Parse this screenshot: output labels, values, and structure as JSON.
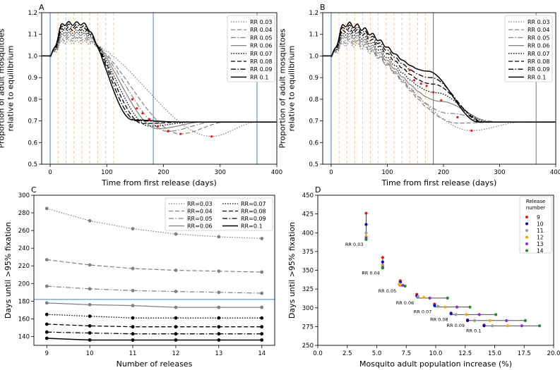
{
  "chart_data": [
    {
      "panel": "A",
      "type": "line",
      "xlabel": "Time from first release (days)",
      "ylabel": [
        "Proportion of adult mosquitoes",
        "relative to equilibrium"
      ],
      "xlim": [
        -15,
        400
      ],
      "ylim": [
        0.5,
        1.2
      ],
      "xticks": [
        0,
        100,
        200,
        300,
        400
      ],
      "yticks": [
        0.5,
        0.6,
        0.7,
        0.8,
        0.9,
        1.0,
        1.1,
        1.2
      ],
      "grid": false,
      "legend_position": "top-right",
      "release_days": [
        0,
        14,
        28,
        42,
        56,
        70,
        84,
        98,
        112
      ],
      "blue_lines_days": [
        0,
        182,
        365
      ],
      "peak_base": 1.145,
      "tail_value": 0.695,
      "series": [
        {
          "name": "RR 0.03",
          "min_day": 285,
          "min_value": 0.628,
          "style": "dotted"
        },
        {
          "name": "RR 0.04",
          "min_day": 230,
          "min_value": 0.64,
          "style": "dashed"
        },
        {
          "name": "RR 0.05",
          "min_day": 208,
          "min_value": 0.652,
          "style": "dashdot"
        },
        {
          "name": "RR 0.06",
          "min_day": 190,
          "min_value": 0.664,
          "style": "solid-gray"
        },
        {
          "name": "RR 0.07",
          "min_day": 175,
          "min_value": 0.676,
          "style": "dotted-black"
        },
        {
          "name": "RR 0.08",
          "min_day": 163,
          "min_value": 0.688,
          "style": "dashed-black"
        },
        {
          "name": "RR 0.09",
          "min_day": 153,
          "min_value": 0.7,
          "style": "dashdot-black"
        },
        {
          "name": "RR 0.1",
          "min_day": 145,
          "min_value": 0.705,
          "style": "solid-black"
        }
      ],
      "red_points": [
        [
          285,
          0.628
        ],
        [
          230,
          0.64
        ],
        [
          208,
          0.652
        ],
        [
          190,
          0.675
        ],
        [
          175,
          0.708
        ],
        [
          163,
          0.735
        ],
        [
          153,
          0.758
        ],
        [
          145,
          0.8
        ]
      ]
    },
    {
      "panel": "B",
      "type": "line",
      "xlabel": "Time from first release (days)",
      "ylabel": [
        "Proportion of adult mosquitoes",
        "relative to equilibrium"
      ],
      "xlim": [
        -15,
        400
      ],
      "ylim": [
        0.5,
        1.2
      ],
      "xticks": [
        0,
        100,
        200,
        300,
        400
      ],
      "yticks": [
        0.5,
        0.6,
        0.7,
        0.8,
        0.9,
        1.0,
        1.1,
        1.2
      ],
      "grid": false,
      "legend_position": "top-right",
      "release_days": [
        0,
        14,
        28,
        42,
        56,
        70,
        84,
        98,
        112,
        126,
        140,
        154,
        168,
        182
      ],
      "blue_lines_days": [
        0,
        182,
        365
      ],
      "series": [
        {
          "name": "RR 0.03",
          "min_day": 250,
          "min_value": 0.655,
          "style": "dotted"
        },
        {
          "name": "RR 0.04",
          "min_day": 225,
          "min_value": 0.69,
          "style": "dashed"
        },
        {
          "name": "RR 0.05",
          "min_day": 210,
          "min_value": 0.735,
          "style": "dashdot"
        },
        {
          "name": "RR 0.06",
          "min_day": 196,
          "min_value": 0.79,
          "style": "solid-gray"
        },
        {
          "name": "RR 0.07",
          "min_day": 188,
          "min_value": 0.83,
          "style": "dotted-black"
        },
        {
          "name": "RR 0.08",
          "min_day": 182,
          "min_value": 0.87,
          "style": "dashed-black"
        },
        {
          "name": "RR 0.09",
          "min_day": 178,
          "min_value": 0.9,
          "style": "dashdot-black"
        },
        {
          "name": "RR 0.1",
          "min_day": 172,
          "min_value": 0.93,
          "style": "solid-black"
        }
      ],
      "red_points": [
        [
          250,
          0.655
        ],
        [
          225,
          0.717
        ],
        [
          196,
          0.795
        ],
        [
          182,
          0.832
        ],
        [
          170,
          0.862
        ],
        [
          160,
          0.872
        ],
        [
          148,
          0.888
        ],
        [
          140,
          0.935
        ]
      ]
    },
    {
      "panel": "C",
      "type": "line",
      "xlabel": "Number of releases",
      "ylabel": "Days until >95% fixation",
      "xlim": [
        8.7,
        14.3
      ],
      "ylim": [
        130,
        300
      ],
      "xticks": [
        9,
        10,
        11,
        12,
        13,
        14
      ],
      "yticks": [
        140,
        160,
        180,
        200,
        220,
        240,
        260,
        280,
        300
      ],
      "horizontal_line": 182,
      "grid": false,
      "legend_position": "top-right",
      "x": [
        9,
        10,
        11,
        12,
        13,
        14
      ],
      "series": [
        {
          "name": "RR=0.03",
          "values": [
            285,
            271,
            262,
            256,
            253,
            251
          ],
          "style": "dotted"
        },
        {
          "name": "RR=0.04",
          "values": [
            227,
            221,
            217,
            215,
            214,
            213
          ],
          "style": "dashed"
        },
        {
          "name": "RR=0.05",
          "values": [
            197,
            194,
            192,
            191,
            190,
            189
          ],
          "style": "dashdot"
        },
        {
          "name": "RR=0.06",
          "values": [
            178,
            176,
            175,
            173,
            173,
            173
          ],
          "style": "solid-gray"
        },
        {
          "name": "RR=0.07",
          "values": [
            165,
            163,
            161,
            161,
            161,
            161
          ],
          "style": "dotted-black"
        },
        {
          "name": "RR=0.08",
          "values": [
            154,
            152,
            151,
            151,
            151,
            151
          ],
          "style": "dashed-black"
        },
        {
          "name": "RR=0.09",
          "values": [
            145,
            144,
            143,
            143,
            143,
            143
          ],
          "style": "dashdot-black"
        },
        {
          "name": "RR=0.1",
          "values": [
            138,
            136,
            136,
            136,
            136,
            136
          ],
          "style": "solid-black"
        }
      ]
    },
    {
      "panel": "D",
      "type": "scatter",
      "xlabel": "Mosquito adult population increase (%)",
      "ylabel": "Days until >95% fixation",
      "xlim": [
        0,
        20
      ],
      "ylim": [
        250,
        450
      ],
      "xticks": [
        0.0,
        2.5,
        5.0,
        7.5,
        10.0,
        12.5,
        15.0,
        17.5,
        20.0
      ],
      "yticks": [
        250,
        275,
        300,
        325,
        350,
        375,
        400,
        425,
        450
      ],
      "grid": false,
      "legend_title": [
        "Release",
        "number"
      ],
      "legend_position": "top-right",
      "legend": [
        {
          "label": "9",
          "color": "#e41a1c"
        },
        {
          "label": "10",
          "color": "#0000cc"
        },
        {
          "label": "11",
          "color": "#999999"
        },
        {
          "label": "12",
          "color": "#ffa500"
        },
        {
          "label": "13",
          "color": "#8a2be2"
        },
        {
          "label": "14",
          "color": "#228b22"
        }
      ],
      "groups": [
        {
          "label": "RR 0.03",
          "points": [
            [
              4.1,
              426
            ],
            [
              4.1,
              411
            ],
            [
              4.1,
              400
            ],
            [
              4.1,
              395
            ],
            [
              4.1,
              393
            ],
            [
              4.1,
              391
            ]
          ]
        },
        {
          "label": "RR 0.04",
          "points": [
            [
              5.5,
              367
            ],
            [
              5.5,
              361
            ],
            [
              5.5,
              357
            ],
            [
              5.5,
              355
            ],
            [
              5.5,
              354
            ],
            [
              5.5,
              353
            ]
          ]
        },
        {
          "label": "RR 0.05",
          "points": [
            [
              7.0,
              336
            ],
            [
              7.0,
              334
            ],
            [
              6.95,
              332
            ],
            [
              6.9,
              331
            ],
            [
              7.2,
              330
            ],
            [
              7.4,
              329
            ]
          ]
        },
        {
          "label": "RR 0.06",
          "points": [
            [
              8.4,
              318
            ],
            [
              8.4,
              316
            ],
            [
              8.5,
              315
            ],
            [
              9.0,
              314
            ],
            [
              9.5,
              313
            ],
            [
              11.0,
              313
            ]
          ]
        },
        {
          "label": "RR 0.07",
          "points": [
            [
              9.9,
              305
            ],
            [
              9.9,
              303
            ],
            [
              10.2,
              302
            ],
            [
              10.8,
              301
            ],
            [
              11.8,
              301
            ],
            [
              12.9,
              301
            ]
          ]
        },
        {
          "label": "RR 0.08",
          "points": [
            [
              11.3,
              293
            ],
            [
              11.3,
              292
            ],
            [
              11.7,
              291
            ],
            [
              12.6,
              291
            ],
            [
              13.7,
              291
            ],
            [
              15.1,
              291
            ]
          ]
        },
        {
          "label": "RR 0.09",
          "points": [
            [
              12.7,
              284
            ],
            [
              12.7,
              283
            ],
            [
              13.3,
              283
            ],
            [
              14.6,
              283
            ],
            [
              16.0,
              283
            ],
            [
              17.6,
              283
            ]
          ]
        },
        {
          "label": "RR 0.1",
          "points": [
            [
              14.1,
              277
            ],
            [
              14.1,
              276
            ],
            [
              14.8,
              276
            ],
            [
              16.1,
              276
            ],
            [
              17.3,
              276
            ],
            [
              18.8,
              276
            ]
          ]
        }
      ]
    }
  ]
}
